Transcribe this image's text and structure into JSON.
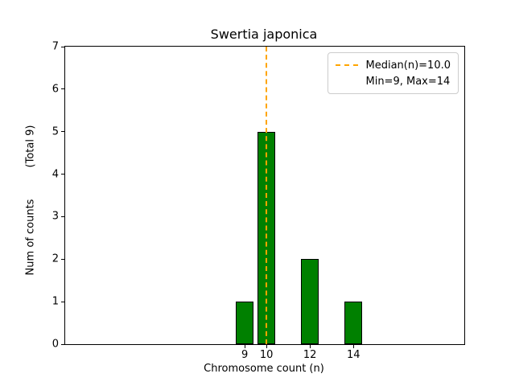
{
  "chart_data": {
    "type": "bar",
    "title": "Swertia japonica",
    "xlabel": "Chromosome count (n)",
    "ylabel": "Num of counts",
    "ylabel_annotation": "(Total 9)",
    "x": [
      9,
      10,
      12,
      14
    ],
    "counts": [
      1,
      5,
      2,
      1
    ],
    "bar_width": 0.8,
    "xlim": [
      0.74,
      19.1
    ],
    "ylim": [
      0,
      7
    ],
    "xticks": [
      9,
      10,
      12,
      14
    ],
    "yticks": [
      0,
      1,
      2,
      3,
      4,
      5,
      6,
      7
    ],
    "median": 10.0,
    "min": 9,
    "max": 14,
    "total_counts": 9,
    "legend": [
      "Median(n)=10.0",
      "Min=9, Max=14"
    ],
    "legend_position": "upper right",
    "grid": false,
    "colors": {
      "bar_fill": "#008000",
      "bar_edge": "#000000",
      "median_line": "#ffa500",
      "background": "#ffffff"
    }
  }
}
